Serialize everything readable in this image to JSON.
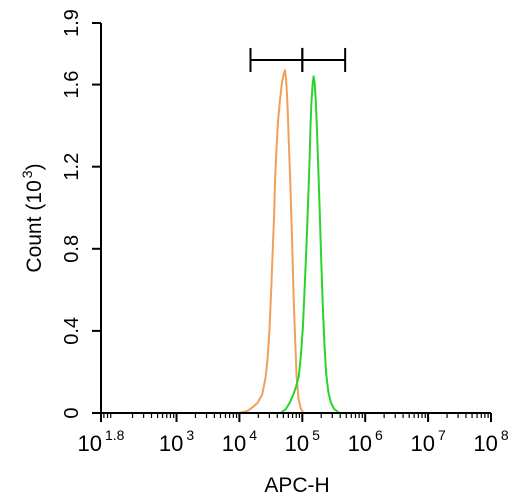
{
  "chart_data": {
    "type": "line",
    "xscale": "log",
    "xlabel": "APC-H",
    "ylabel": "Count",
    "ylabel_unit_base": "10",
    "ylabel_unit_exp": "3",
    "xlim": [
      63,
      100000000
    ],
    "ylim": [
      0,
      1.9
    ],
    "x_ticks": [
      {
        "base": "10",
        "exp": "1.8",
        "value": 63
      },
      {
        "base": "10",
        "exp": "3",
        "value": 1000
      },
      {
        "base": "10",
        "exp": "4",
        "value": 10000
      },
      {
        "base": "10",
        "exp": "5",
        "value": 100000
      },
      {
        "base": "10",
        "exp": "6",
        "value": 1000000
      },
      {
        "base": "10",
        "exp": "7",
        "value": 10000000
      },
      {
        "base": "10",
        "exp": "8",
        "value": 100000000
      }
    ],
    "y_ticks": [
      {
        "label": "0",
        "value": 0
      },
      {
        "label": "0.4",
        "value": 0.4
      },
      {
        "label": "0.8",
        "value": 0.8
      },
      {
        "label": "1.2",
        "value": 1.2
      },
      {
        "label": "1.6",
        "value": 1.6
      },
      {
        "label": "1.9",
        "value": 1.9
      }
    ],
    "series": [
      {
        "color": "#f0a05a",
        "points": [
          [
            10000,
            0
          ],
          [
            13500,
            0.01
          ],
          [
            16500,
            0.03
          ],
          [
            19500,
            0.05
          ],
          [
            23000,
            0.09
          ],
          [
            26000,
            0.17
          ],
          [
            28000,
            0.26
          ],
          [
            30000,
            0.4
          ],
          [
            32000,
            0.6
          ],
          [
            34000,
            0.8
          ],
          [
            35500,
            0.95
          ],
          [
            37000,
            1.15
          ],
          [
            39000,
            1.3
          ],
          [
            41000,
            1.42
          ],
          [
            44000,
            1.52
          ],
          [
            47000,
            1.6
          ],
          [
            50500,
            1.65
          ],
          [
            53000,
            1.67
          ],
          [
            55000,
            1.63
          ],
          [
            57000,
            1.55
          ],
          [
            59000,
            1.45
          ],
          [
            61000,
            1.32
          ],
          [
            64000,
            1.15
          ],
          [
            67000,
            0.95
          ],
          [
            70000,
            0.75
          ],
          [
            73000,
            0.55
          ],
          [
            77000,
            0.35
          ],
          [
            81000,
            0.18
          ],
          [
            87000,
            0.07
          ],
          [
            95000,
            0.02
          ],
          [
            105000,
            0
          ]
        ]
      },
      {
        "color": "#2bd42b",
        "points": [
          [
            45000,
            0
          ],
          [
            55000,
            0.02
          ],
          [
            63000,
            0.05
          ],
          [
            72000,
            0.09
          ],
          [
            80000,
            0.13
          ],
          [
            88000,
            0.18
          ],
          [
            95000,
            0.28
          ],
          [
            102000,
            0.42
          ],
          [
            108000,
            0.58
          ],
          [
            114000,
            0.75
          ],
          [
            120000,
            0.92
          ],
          [
            126000,
            1.1
          ],
          [
            131000,
            1.25
          ],
          [
            135000,
            1.4
          ],
          [
            140000,
            1.52
          ],
          [
            146000,
            1.6
          ],
          [
            151000,
            1.64
          ],
          [
            157000,
            1.61
          ],
          [
            163000,
            1.53
          ],
          [
            170000,
            1.4
          ],
          [
            178000,
            1.22
          ],
          [
            188000,
            1.0
          ],
          [
            200000,
            0.75
          ],
          [
            212000,
            0.52
          ],
          [
            225000,
            0.33
          ],
          [
            240000,
            0.19
          ],
          [
            260000,
            0.1
          ],
          [
            285000,
            0.05
          ],
          [
            320000,
            0.02
          ],
          [
            390000,
            0
          ]
        ]
      }
    ],
    "range_markers": [
      {
        "x1": 15000,
        "x2": 100000,
        "y": 1.72
      },
      {
        "x1": 100000,
        "x2": 480000,
        "y": 1.72
      }
    ]
  }
}
